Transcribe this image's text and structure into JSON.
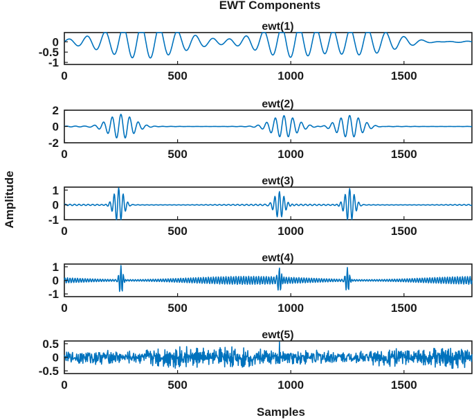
{
  "chart_data": {
    "type": "line",
    "title": "EWT Components",
    "xlabel": "Samples",
    "ylabel": "Amplitude",
    "line_color": "#0072BD",
    "grid": false,
    "xlim": [
      0,
      1800
    ],
    "xticks": [
      0,
      500,
      1000,
      1500
    ],
    "xtick_labels": [
      "0",
      "500",
      "1000",
      "1500"
    ],
    "panels": [
      {
        "title": "ewt(1)",
        "ylim": [
          -1.1,
          0.45
        ],
        "yticks": [
          0,
          -0.5,
          -1
        ],
        "ytick_labels": [
          "0",
          "-0.5",
          "-1"
        ],
        "bursts": [
          [
            220,
            0.55,
            6
          ],
          [
            300,
            -1.05,
            6
          ],
          [
            1000,
            -0.75,
            5
          ],
          [
            1300,
            -0.85,
            6
          ]
        ],
        "freq": 0.0125,
        "base_amp": 0.22,
        "noise": 0.0
      },
      {
        "title": "ewt(2)",
        "ylim": [
          -2,
          2
        ],
        "yticks": [
          2,
          0,
          -2
        ],
        "ytick_labels": [
          "2",
          "0",
          "-2"
        ],
        "bursts": [
          [
            250,
            1.5,
            4
          ],
          [
            970,
            1.3,
            4
          ],
          [
            1260,
            1.4,
            4
          ]
        ],
        "freq": 0.026,
        "base_amp": 0.05,
        "noise": 0.0
      },
      {
        "title": "ewt(3)",
        "ylim": [
          -1,
          1.2
        ],
        "yticks": [
          1,
          0,
          -1
        ],
        "ytick_labels": [
          "1",
          "0",
          "-1"
        ],
        "bursts": [
          [
            240,
            1.15,
            3
          ],
          [
            950,
            0.9,
            3
          ],
          [
            1260,
            1.1,
            3
          ]
        ],
        "freq": 0.05,
        "base_amp": 0.05,
        "noise": 0.0
      },
      {
        "title": "ewt(4)",
        "ylim": [
          -1.2,
          1.2
        ],
        "yticks": [
          1,
          0,
          -1
        ],
        "ytick_labels": [
          "1",
          "0",
          "-1"
        ],
        "bursts": [
          [
            250,
            1.1,
            2
          ],
          [
            950,
            0.9,
            2
          ],
          [
            1250,
            0.95,
            2
          ]
        ],
        "freq": 0.09,
        "base_amp": 0.3,
        "noise": 0.0
      },
      {
        "title": "ewt(5)",
        "ylim": [
          -0.6,
          0.6
        ],
        "yticks": [
          0.5,
          0,
          -0.5
        ],
        "ytick_labels": [
          "0.5",
          "0",
          "-0.5"
        ],
        "bursts": [
          [
            950,
            0.55,
            1
          ]
        ],
        "freq": 0.23,
        "base_amp": 0.22,
        "noise": 0.35
      }
    ]
  }
}
